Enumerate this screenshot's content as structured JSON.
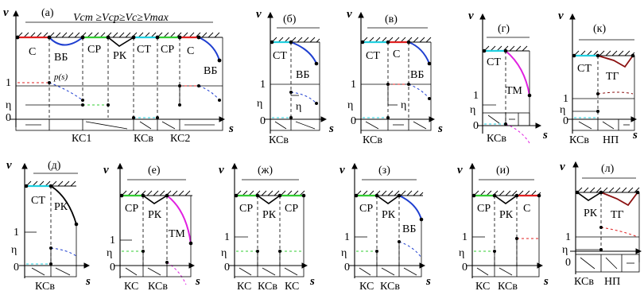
{
  "axis_labels": {
    "v": "v",
    "s": "s"
  },
  "panels": {
    "a": {
      "title": "(а)",
      "condition": "Vст ≥Vср≥Vс≥Vmax",
      "ticks": {
        "one": "1",
        "eta": "η",
        "zero": "0"
      },
      "p_label": "p(s)",
      "segments": [
        "С",
        "ВБ",
        "СР",
        "РК",
        "СТ",
        "СР",
        "С",
        "ВБ"
      ],
      "bottom": [
        "КС1",
        "КСв",
        "КС2"
      ]
    },
    "b": {
      "title": "(б)",
      "segments": [
        "СТ",
        "ВБ",
        "η"
      ],
      "ticks": {
        "one": "1",
        "eta": "η",
        "zero": "0"
      },
      "bottom": [
        "КСв"
      ]
    },
    "v": {
      "title": "(в)",
      "segments": [
        "СТ",
        "С",
        "ВБ",
        "η"
      ],
      "ticks": {
        "one": "1",
        "eta": "η",
        "zero": "0"
      },
      "bottom": [
        "КСв"
      ]
    },
    "g": {
      "title": "(г)",
      "segments": [
        "СТ",
        "ТМ"
      ],
      "ticks": {
        "one": "1",
        "eta": "η",
        "zero": "0"
      },
      "bottom": [
        "КСв"
      ]
    },
    "k": {
      "title": "(к)",
      "segments": [
        "СТ",
        "ТГ"
      ],
      "ticks": {
        "one": "1",
        "eta": "η",
        "zero": "0"
      },
      "bottom": [
        "КСв",
        "НП"
      ]
    },
    "d": {
      "title": "(д)",
      "segments": [
        "СТ",
        "РК"
      ],
      "ticks": {
        "one": "1",
        "eta": "η",
        "zero": "0"
      },
      "bottom": [
        "КСв"
      ]
    },
    "e": {
      "title": "(е)",
      "segments": [
        "СР",
        "РК",
        "ТМ"
      ],
      "ticks": {
        "one": "1",
        "eta": "η",
        "zero": "0"
      },
      "bottom": [
        "КС",
        "КСв"
      ]
    },
    "zh": {
      "title": "(ж)",
      "segments": [
        "СР",
        "РК",
        "СР"
      ],
      "ticks": {
        "one": "1",
        "eta": "η",
        "zero": "0"
      },
      "bottom": [
        "КС",
        "КСв",
        "КС"
      ]
    },
    "z": {
      "title": "(з)",
      "segments": [
        "СР",
        "РК",
        "ВБ"
      ],
      "ticks": {
        "one": "1",
        "eta": "η",
        "zero": "0"
      },
      "bottom": [
        "КС",
        "КСв"
      ]
    },
    "i": {
      "title": "(и)",
      "segments": [
        "СР",
        "РК",
        "С"
      ],
      "ticks": {
        "one": "1",
        "eta": "η",
        "zero": "0"
      },
      "bottom": [
        "КС",
        "КСв"
      ]
    },
    "l": {
      "title": "(л)",
      "segments": [
        "РК",
        "ТГ"
      ],
      "ticks": {
        "one": "1",
        "eta": "η",
        "zero": "0"
      },
      "bottom": [
        "КСв",
        "НП"
      ]
    }
  },
  "colors": {
    "red": "#e02020",
    "blue": "#1f3fd0",
    "green": "#33cc33",
    "cyan": "#22d0e0",
    "magenta": "#e020e0",
    "darkred": "#8b1010",
    "black": "#000000"
  }
}
